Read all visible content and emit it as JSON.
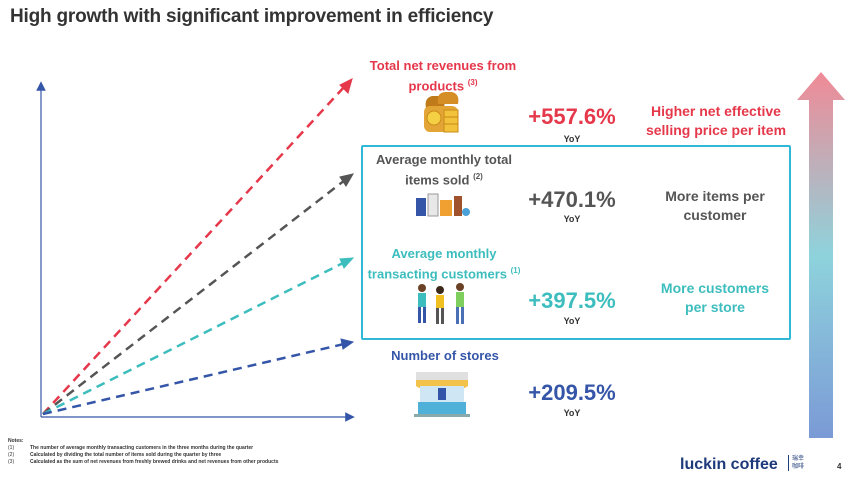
{
  "title": "High growth with significant improvement in efficiency",
  "metrics": [
    {
      "label": "Total net revenues from products",
      "note_ref": "(3)",
      "pct": "+557.6%",
      "yoy": "YoY",
      "desc_line1": "Higher net effective",
      "desc_line2": "selling price per item",
      "color": "#e5384b"
    },
    {
      "label_line1": "Average monthly total",
      "label_line2": "items sold",
      "note_ref": "(2)",
      "pct": "+470.1%",
      "yoy": "YoY",
      "desc_line1": "More items per",
      "desc_line2": "customer",
      "color": "#555555"
    },
    {
      "label_line1": "Average monthly",
      "label_line2": "transacting customers",
      "note_ref": "(1)",
      "pct": "+397.5%",
      "yoy": "YoY",
      "desc_line1": "More customers",
      "desc_line2": "per store",
      "color": "#3dbdbd"
    },
    {
      "label": "Number of stores",
      "pct": "+209.5%",
      "yoy": "YoY",
      "color": "#3556a8"
    }
  ],
  "notes": {
    "heading": "Notes:",
    "items": [
      {
        "ref": "(1)",
        "text": "The number of average monthly transacting customers in the three months during the quarter"
      },
      {
        "ref": "(2)",
        "text": "Calculated by dividing the total number of items sold during the quarter by three"
      },
      {
        "ref": "(3)",
        "text": "Calculated as the sum of net revenues from freshly brewed drinks and net revenues from other products"
      }
    ]
  },
  "brand": {
    "name": "luckin coffee",
    "cn_line1": "瑞幸",
    "cn_line2": "咖啡"
  },
  "page_number": "4",
  "colors": {
    "red": "#e5384b",
    "gray": "#555555",
    "teal": "#3dbdbd",
    "blue": "#3556a8",
    "frame": "#31b8d6"
  }
}
